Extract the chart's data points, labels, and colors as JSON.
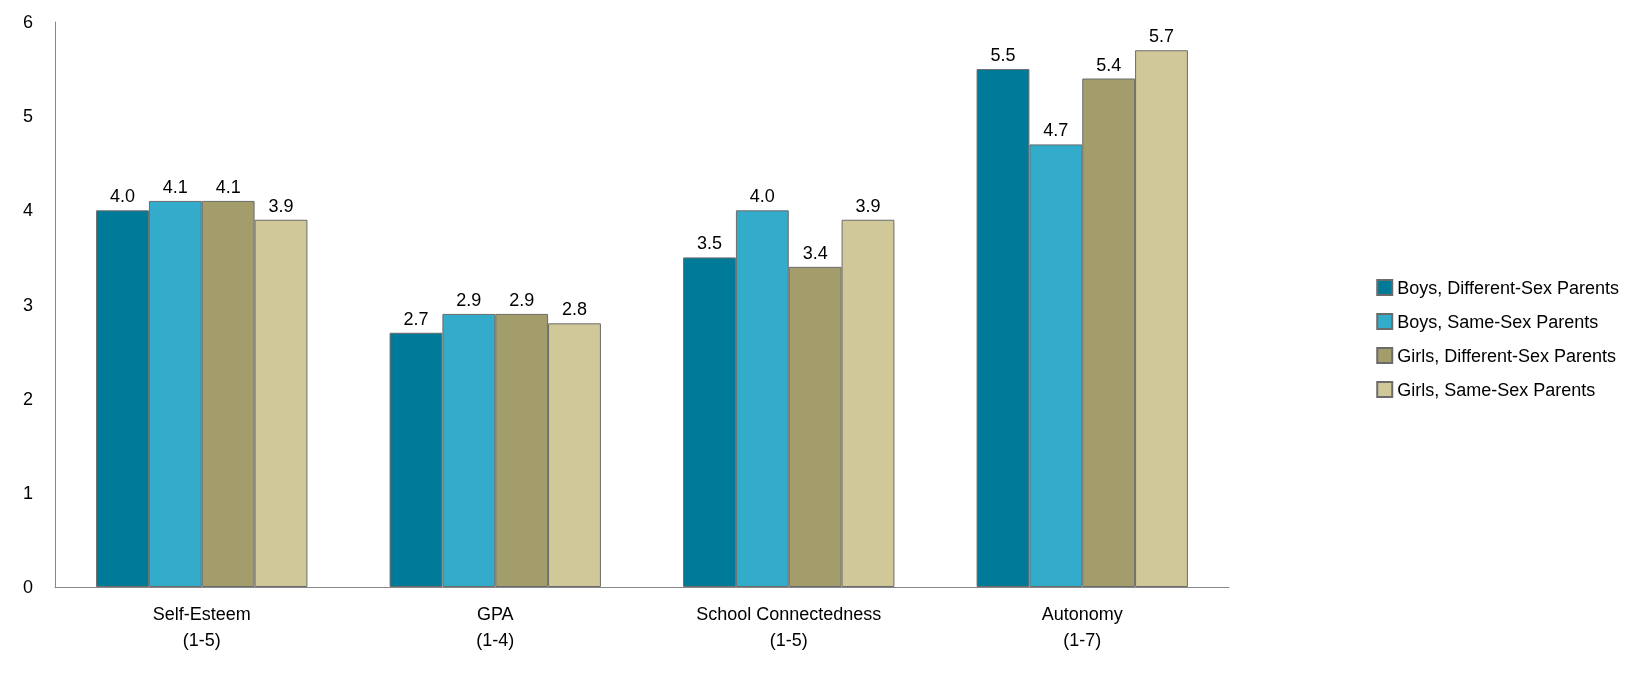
{
  "chart_data": {
    "type": "bar",
    "categories": [
      "Self-Esteem\n(1-5)",
      "GPA\n(1-4)",
      "School Connectedness\n(1-5)",
      "Autonomy\n(1-7)"
    ],
    "series": [
      {
        "name": "Boys, Different-Sex Parents",
        "color": "#007a99",
        "values": [
          4.0,
          2.7,
          3.5,
          5.5
        ],
        "value_labels": [
          "4.0",
          "2.7",
          "3.5",
          "5.5"
        ]
      },
      {
        "name": "Boys, Same-Sex Parents",
        "color": "#33accb",
        "values": [
          4.1,
          2.9,
          4.0,
          4.7
        ],
        "value_labels": [
          "4.1",
          "2.9",
          "4.0",
          "4.7"
        ]
      },
      {
        "name": "Girls, Different-Sex Parents",
        "color": "#a39d6c",
        "values": [
          4.1,
          2.9,
          3.4,
          5.4
        ],
        "value_labels": [
          "4.1",
          "2.9",
          "3.4",
          "5.4"
        ]
      },
      {
        "name": "Girls, Same-Sex Parents",
        "color": "#d0c899",
        "values": [
          3.9,
          2.8,
          3.9,
          5.7
        ],
        "value_labels": [
          "3.9",
          "2.8",
          "3.9",
          "5.7"
        ]
      }
    ],
    "ylim": [
      0,
      6
    ],
    "yticks": [
      0,
      1,
      2,
      3,
      4,
      5,
      6
    ],
    "grid": false,
    "legend": "right"
  }
}
